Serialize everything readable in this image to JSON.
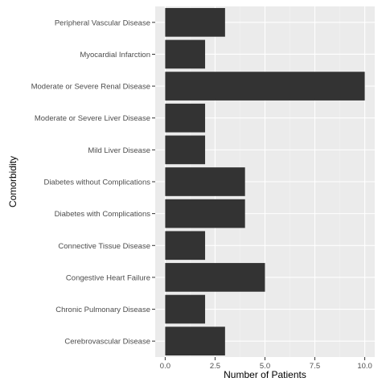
{
  "chart_data": {
    "type": "bar",
    "orientation": "horizontal",
    "categories": [
      "Peripheral Vascular Disease",
      "Myocardial Infarction",
      "Moderate or Severe Renal Disease",
      "Moderate or Severe Liver Disease",
      "Mild Liver Disease",
      "Diabetes without Complications",
      "Diabetes with Complications",
      "Connective Tissue Disease",
      "Congestive Heart Failure",
      "Chronic Pulmonary Disease",
      "Cerebrovascular Disease"
    ],
    "values": [
      3,
      2,
      10,
      2,
      2,
      4,
      4,
      2,
      5,
      2,
      3
    ],
    "xlabel": "Number of Patients",
    "ylabel": "Comorbidity",
    "xlim": [
      -0.5,
      10.5
    ],
    "xticks": [
      0,
      2.5,
      5,
      7.5,
      10
    ],
    "xtick_labels": [
      "0.0",
      "2.5",
      "5.0",
      "7.5",
      "10.0"
    ],
    "grid": true,
    "colors": {
      "bar": "#333333",
      "panel": "#ebebeb",
      "grid_major": "#ffffff",
      "grid_minor": "#f5f5f5"
    }
  }
}
